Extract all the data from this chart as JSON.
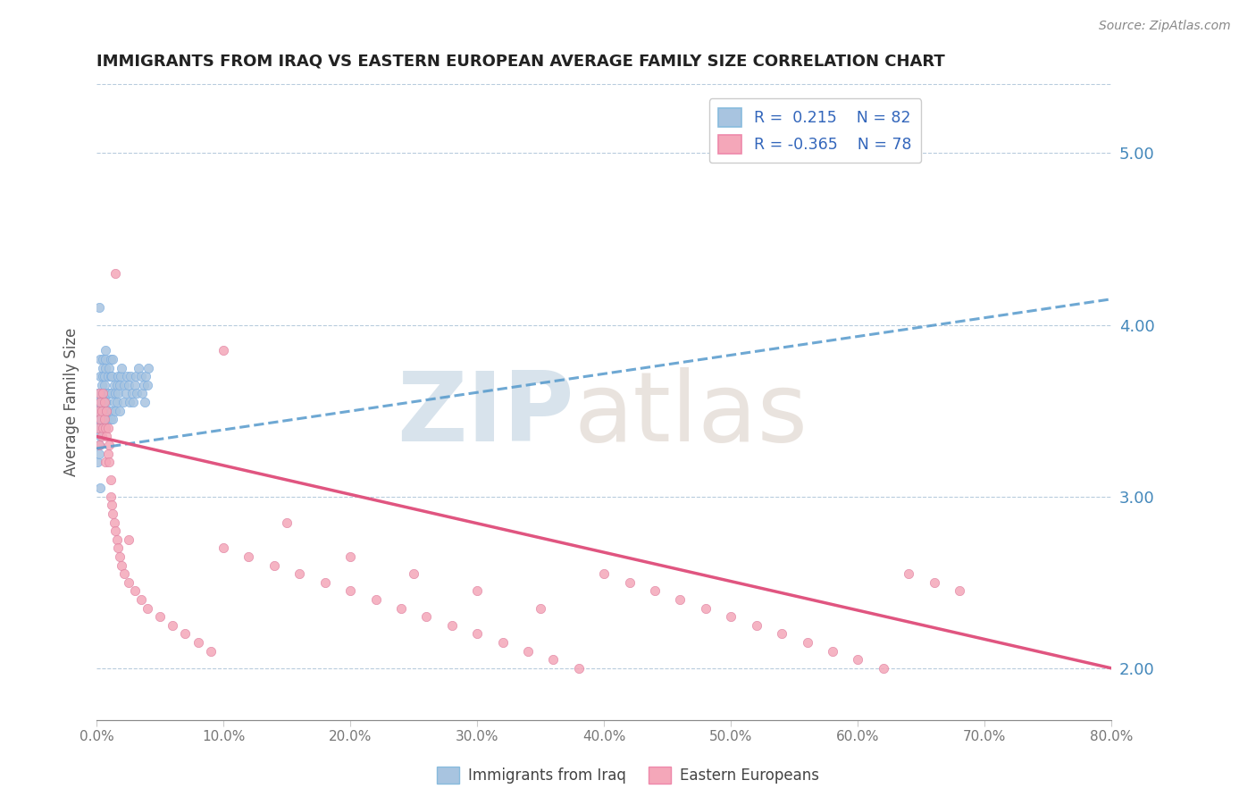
{
  "title": "IMMIGRANTS FROM IRAQ VS EASTERN EUROPEAN AVERAGE FAMILY SIZE CORRELATION CHART",
  "source": "Source: ZipAtlas.com",
  "ylabel": "Average Family Size",
  "xlim": [
    0.0,
    0.8
  ],
  "ylim": [
    1.7,
    5.4
  ],
  "yticks": [
    2.0,
    3.0,
    4.0,
    5.0
  ],
  "xticks": [
    0.0,
    0.1,
    0.2,
    0.3,
    0.4,
    0.5,
    0.6,
    0.7,
    0.8
  ],
  "xtick_labels": [
    "0.0%",
    "10.0%",
    "20.0%",
    "30.0%",
    "40.0%",
    "50.0%",
    "60.0%",
    "70.0%",
    "80.0%"
  ],
  "iraq_color": "#a8c4e0",
  "eastern_color": "#f4a7b9",
  "iraq_line_color": "#5599cc",
  "eastern_line_color": "#e05580",
  "iraq_R": 0.215,
  "iraq_N": 82,
  "eastern_R": -0.365,
  "eastern_N": 78,
  "legend_label_iraq": "Immigrants from Iraq",
  "legend_label_eastern": "Eastern Europeans",
  "iraq_x": [
    0.0005,
    0.001,
    0.001,
    0.001,
    0.002,
    0.002,
    0.002,
    0.002,
    0.003,
    0.003,
    0.003,
    0.003,
    0.003,
    0.004,
    0.004,
    0.004,
    0.004,
    0.005,
    0.005,
    0.005,
    0.005,
    0.005,
    0.006,
    0.006,
    0.006,
    0.006,
    0.007,
    0.007,
    0.007,
    0.007,
    0.008,
    0.008,
    0.008,
    0.008,
    0.009,
    0.009,
    0.009,
    0.01,
    0.01,
    0.01,
    0.011,
    0.011,
    0.011,
    0.012,
    0.012,
    0.012,
    0.013,
    0.013,
    0.014,
    0.014,
    0.015,
    0.015,
    0.016,
    0.016,
    0.017,
    0.017,
    0.018,
    0.018,
    0.019,
    0.02,
    0.021,
    0.022,
    0.023,
    0.024,
    0.025,
    0.026,
    0.027,
    0.028,
    0.029,
    0.03,
    0.031,
    0.032,
    0.033,
    0.035,
    0.036,
    0.037,
    0.038,
    0.039,
    0.04,
    0.041,
    0.002,
    0.003
  ],
  "iraq_y": [
    3.2,
    3.5,
    3.6,
    3.4,
    3.3,
    3.45,
    3.55,
    3.25,
    3.7,
    3.35,
    3.5,
    3.8,
    3.4,
    3.6,
    3.45,
    3.55,
    3.65,
    3.75,
    3.5,
    3.6,
    3.7,
    3.8,
    3.45,
    3.55,
    3.65,
    3.7,
    3.8,
    3.85,
    3.75,
    3.4,
    3.55,
    3.45,
    3.6,
    3.5,
    3.6,
    3.7,
    3.45,
    3.75,
    3.5,
    3.6,
    3.7,
    3.8,
    3.45,
    3.5,
    3.6,
    3.7,
    3.8,
    3.45,
    3.55,
    3.65,
    3.5,
    3.6,
    3.55,
    3.65,
    3.6,
    3.7,
    3.5,
    3.65,
    3.7,
    3.75,
    3.55,
    3.65,
    3.6,
    3.7,
    3.65,
    3.55,
    3.7,
    3.6,
    3.55,
    3.65,
    3.7,
    3.6,
    3.75,
    3.7,
    3.6,
    3.65,
    3.55,
    3.7,
    3.65,
    3.75,
    4.1,
    3.05
  ],
  "eastern_x": [
    0.001,
    0.001,
    0.002,
    0.002,
    0.003,
    0.003,
    0.004,
    0.004,
    0.005,
    0.005,
    0.006,
    0.006,
    0.007,
    0.007,
    0.008,
    0.008,
    0.009,
    0.009,
    0.01,
    0.01,
    0.011,
    0.011,
    0.012,
    0.013,
    0.014,
    0.015,
    0.016,
    0.017,
    0.018,
    0.02,
    0.022,
    0.025,
    0.03,
    0.035,
    0.04,
    0.05,
    0.06,
    0.07,
    0.08,
    0.09,
    0.1,
    0.12,
    0.14,
    0.16,
    0.18,
    0.2,
    0.22,
    0.24,
    0.26,
    0.28,
    0.3,
    0.32,
    0.34,
    0.36,
    0.38,
    0.4,
    0.42,
    0.44,
    0.46,
    0.48,
    0.5,
    0.52,
    0.54,
    0.56,
    0.58,
    0.6,
    0.62,
    0.64,
    0.66,
    0.68,
    0.1,
    0.15,
    0.2,
    0.25,
    0.3,
    0.35,
    0.015,
    0.025
  ],
  "eastern_y": [
    3.4,
    3.5,
    3.6,
    3.3,
    3.45,
    3.55,
    3.35,
    3.5,
    3.4,
    3.6,
    3.45,
    3.55,
    3.2,
    3.4,
    3.35,
    3.5,
    3.25,
    3.4,
    3.3,
    3.2,
    3.1,
    3.0,
    2.95,
    2.9,
    2.85,
    2.8,
    2.75,
    2.7,
    2.65,
    2.6,
    2.55,
    2.5,
    2.45,
    2.4,
    2.35,
    2.3,
    2.25,
    2.2,
    2.15,
    2.1,
    2.7,
    2.65,
    2.6,
    2.55,
    2.5,
    2.45,
    2.4,
    2.35,
    2.3,
    2.25,
    2.2,
    2.15,
    2.1,
    2.05,
    2.0,
    2.55,
    2.5,
    2.45,
    2.4,
    2.35,
    2.3,
    2.25,
    2.2,
    2.15,
    2.1,
    2.05,
    2.0,
    2.55,
    2.5,
    2.45,
    3.85,
    2.85,
    2.65,
    2.55,
    2.45,
    2.35,
    4.3,
    2.75
  ]
}
